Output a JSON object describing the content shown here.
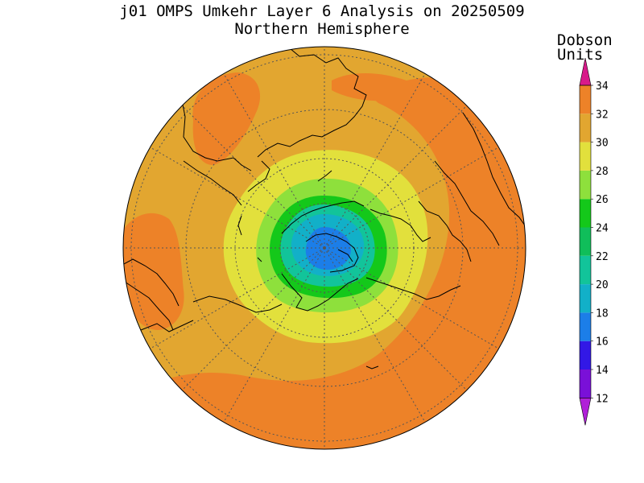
{
  "title": {
    "line1": "j01 OMPS Umkehr Layer 6 Analysis on 20250509",
    "line2": "Northern Hemisphere"
  },
  "colorbar": {
    "units_line1": "Dobson",
    "units_line2": "Units",
    "levels": [
      {
        "label": "12",
        "color": "#7a10d8"
      },
      {
        "label": "14",
        "color": "#3218e6"
      },
      {
        "label": "16",
        "color": "#1c7ee8"
      },
      {
        "label": "18",
        "color": "#12b0c8"
      },
      {
        "label": "20",
        "color": "#12c49a"
      },
      {
        "label": "22",
        "color": "#10be5a"
      },
      {
        "label": "24",
        "color": "#14c81a"
      },
      {
        "label": "26",
        "color": "#8ee03c"
      },
      {
        "label": "28",
        "color": "#e2e03c"
      },
      {
        "label": "30",
        "color": "#e2a630"
      },
      {
        "label": "32",
        "color": "#ed8228"
      },
      {
        "label": "34",
        "color": "#e61616"
      }
    ],
    "under_color": "#b020d8",
    "over_color": "#d81a8a"
  },
  "map": {
    "projection": "north polar stereographic",
    "ocean_background_dobson": 30,
    "high_region_dobson": 32,
    "polar_minimum_dobson": 16
  }
}
